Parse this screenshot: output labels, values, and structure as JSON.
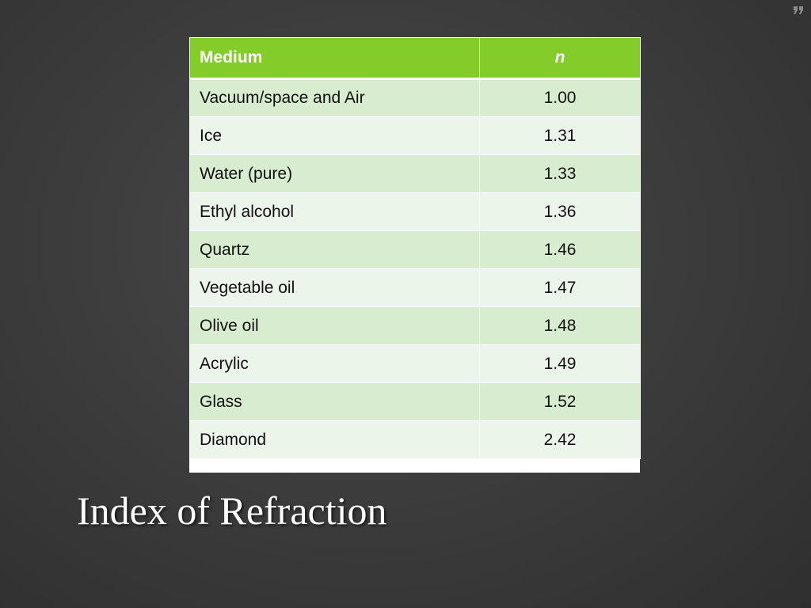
{
  "slide": {
    "title": "Index of Refraction"
  },
  "table": {
    "headers": {
      "medium": "Medium",
      "n": "n"
    },
    "rows": [
      {
        "medium": "Vacuum/space and Air",
        "n": "1.00"
      },
      {
        "medium": "Ice",
        "n": "1.31"
      },
      {
        "medium": "Water (pure)",
        "n": "1.33"
      },
      {
        "medium": "Ethyl alcohol",
        "n": "1.36"
      },
      {
        "medium": "Quartz",
        "n": "1.46"
      },
      {
        "medium": "Vegetable oil",
        "n": "1.47"
      },
      {
        "medium": "Olive oil",
        "n": "1.48"
      },
      {
        "medium": "Acrylic",
        "n": "1.49"
      },
      {
        "medium": "Glass",
        "n": "1.52"
      },
      {
        "medium": "Diamond",
        "n": "2.42"
      }
    ]
  },
  "colors": {
    "header_bg": "#84cc2a",
    "row_odd_bg": "#d8ecd0",
    "row_even_bg": "#ecf5ea",
    "background": "#3d3d3d"
  },
  "icons": {
    "corner": "corner-quote-icon"
  }
}
